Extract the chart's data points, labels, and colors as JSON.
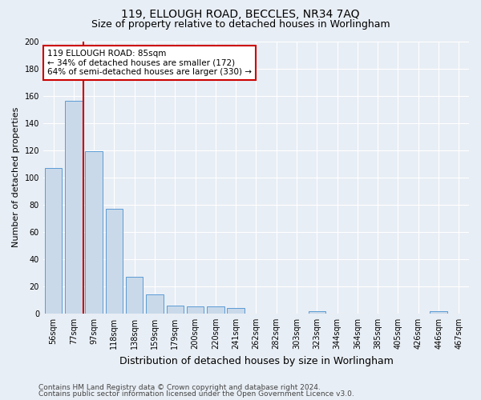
{
  "title1": "119, ELLOUGH ROAD, BECCLES, NR34 7AQ",
  "title2": "Size of property relative to detached houses in Worlingham",
  "xlabel": "Distribution of detached houses by size in Worlingham",
  "ylabel": "Number of detached properties",
  "categories": [
    "56sqm",
    "77sqm",
    "97sqm",
    "118sqm",
    "138sqm",
    "159sqm",
    "179sqm",
    "200sqm",
    "220sqm",
    "241sqm",
    "262sqm",
    "282sqm",
    "303sqm",
    "323sqm",
    "344sqm",
    "364sqm",
    "385sqm",
    "405sqm",
    "426sqm",
    "446sqm",
    "467sqm"
  ],
  "values": [
    107,
    156,
    119,
    77,
    27,
    14,
    6,
    5,
    5,
    4,
    0,
    0,
    0,
    2,
    0,
    0,
    0,
    0,
    0,
    2,
    0
  ],
  "bar_color": "#c9d9ea",
  "bar_edge_color": "#5b9bd5",
  "vline_color": "#cc0000",
  "vline_x_index": 1.5,
  "ylim": [
    0,
    200
  ],
  "yticks": [
    0,
    20,
    40,
    60,
    80,
    100,
    120,
    140,
    160,
    180,
    200
  ],
  "annotation_line1": "119 ELLOUGH ROAD: 85sqm",
  "annotation_line2": "← 34% of detached houses are smaller (172)",
  "annotation_line3": "64% of semi-detached houses are larger (330) →",
  "annotation_box_facecolor": "#ffffff",
  "annotation_box_edgecolor": "#cc0000",
  "footer1": "Contains HM Land Registry data © Crown copyright and database right 2024.",
  "footer2": "Contains public sector information licensed under the Open Government Licence v3.0.",
  "bg_color": "#e8eef5",
  "plot_bg_color": "#e8eef5",
  "grid_color": "#ffffff",
  "title1_fontsize": 10,
  "title2_fontsize": 9,
  "xlabel_fontsize": 9,
  "ylabel_fontsize": 8,
  "tick_fontsize": 7,
  "annotation_fontsize": 7.5,
  "footer_fontsize": 6.5
}
